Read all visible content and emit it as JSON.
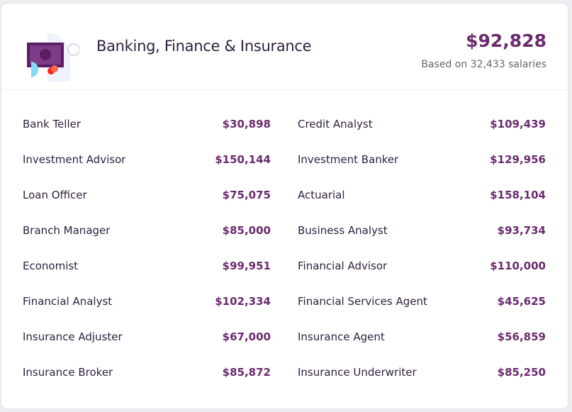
{
  "header": {
    "title": "Banking, Finance & Insurance",
    "average": "$92,828",
    "based_on": "Based on 32,433 salaries",
    "icon": "money-bill-icon"
  },
  "colors": {
    "accent": "#6a2a6e",
    "text": "#2d1f3d"
  },
  "jobs": [
    {
      "name": "Bank Teller",
      "salary": "$30,898"
    },
    {
      "name": "Credit Analyst",
      "salary": "$109,439"
    },
    {
      "name": "Investment Advisor",
      "salary": "$150,144"
    },
    {
      "name": "Investment Banker",
      "salary": "$129,956"
    },
    {
      "name": "Loan Officer",
      "salary": "$75,075"
    },
    {
      "name": "Actuarial",
      "salary": "$158,104"
    },
    {
      "name": "Branch Manager",
      "salary": "$85,000"
    },
    {
      "name": "Business Analyst",
      "salary": "$93,734"
    },
    {
      "name": "Economist",
      "salary": "$99,951"
    },
    {
      "name": "Financial Advisor",
      "salary": "$110,000"
    },
    {
      "name": "Financial Analyst",
      "salary": "$102,334"
    },
    {
      "name": "Financial Services Agent",
      "salary": "$45,625"
    },
    {
      "name": "Insurance Adjuster",
      "salary": "$67,000"
    },
    {
      "name": "Insurance Agent",
      "salary": "$56,859"
    },
    {
      "name": "Insurance Broker",
      "salary": "$85,872"
    },
    {
      "name": "Insurance Underwriter",
      "salary": "$85,250"
    }
  ]
}
